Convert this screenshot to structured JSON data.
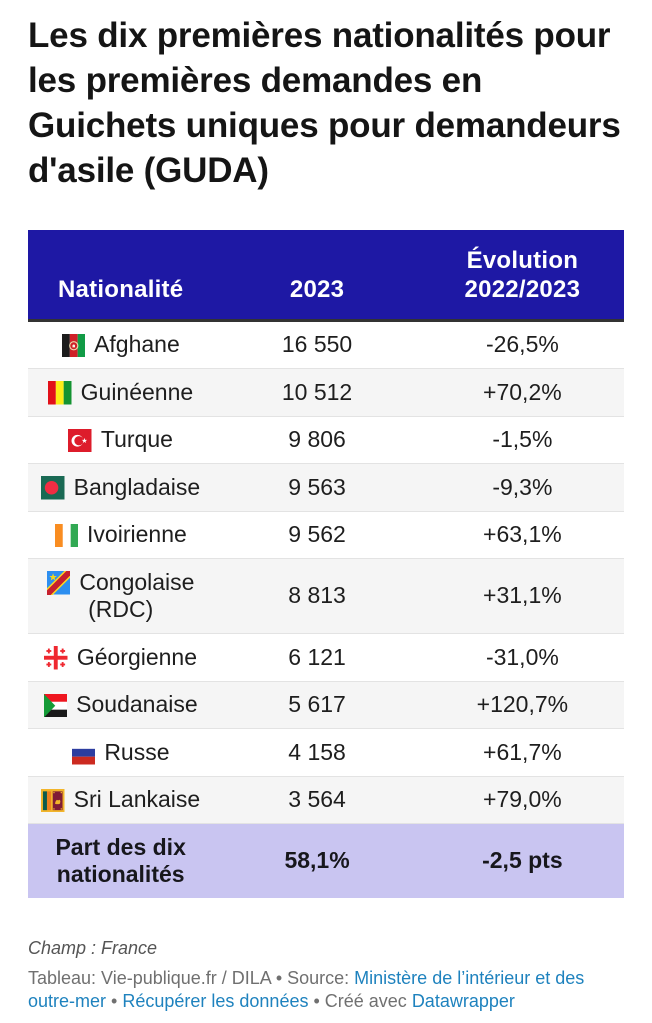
{
  "title": {
    "lines": [
      "Les dix premières nationalités pour",
      "les premières demandes en",
      "Guichets uniques pour demandeurs",
      "d'asile (GUDA)"
    ]
  },
  "table": {
    "columns": [
      {
        "label": "Nationalité"
      },
      {
        "label": "2023"
      },
      {
        "label": "Évolution\n2022/2023"
      }
    ],
    "rows": [
      {
        "flag": "afghanistan-flag-icon",
        "nationality": "Afghane",
        "value": "16 550",
        "evolution": "-26,5%"
      },
      {
        "flag": "guinea-flag-icon",
        "nationality": "Guinéenne",
        "value": "10 512",
        "evolution": "+70,2%"
      },
      {
        "flag": "turkey-flag-icon",
        "nationality": "Turque",
        "value": "9 806",
        "evolution": "-1,5%"
      },
      {
        "flag": "bangladesh-flag-icon",
        "nationality": "Bangladaise",
        "value": "9 563",
        "evolution": "-9,3%"
      },
      {
        "flag": "ivory-coast-flag-icon",
        "nationality": "Ivoirienne",
        "value": "9 562",
        "evolution": "+63,1%"
      },
      {
        "flag": "dr-congo-flag-icon",
        "nationality": "Congolaise (RDC)",
        "value": "8 813",
        "evolution": "+31,1%"
      },
      {
        "flag": "georgia-flag-icon",
        "nationality": "Géorgienne",
        "value": "6 121",
        "evolution": "-31,0%"
      },
      {
        "flag": "sudan-flag-icon",
        "nationality": "Soudanaise",
        "value": "5 617",
        "evolution": "+120,7%"
      },
      {
        "flag": "russia-flag-icon",
        "nationality": "Russe",
        "value": "4 158",
        "evolution": "+61,7%"
      },
      {
        "flag": "sri-lanka-flag-icon",
        "nationality": "Sri Lankaise",
        "value": "3 564",
        "evolution": "+79,0%"
      }
    ],
    "summary": {
      "label": "Part des dix nationalités",
      "value": "58,1%",
      "evolution": "-2,5 pts"
    }
  },
  "footer": {
    "note": "Champ : France",
    "attribution": {
      "prefix": "Tableau: Vie-publique.fr / DILA • Source: ",
      "source_link": "Ministère de l’intérieur et des outre-mer",
      "sep1": " • ",
      "data_link": "Récupérer les données",
      "sep2": " • Créé avec ",
      "creator_link": "Datawrapper"
    }
  },
  "chart_data": {
    "type": "table",
    "title": "Les dix premières nationalités pour les premières demandes en Guichets uniques pour demandeurs d'asile (GUDA)",
    "columns": [
      "Nationalité",
      "2023",
      "Évolution 2022/2023"
    ],
    "rows": [
      [
        "Afghane",
        "16 550",
        "-26,5%"
      ],
      [
        "Guinéenne",
        "10 512",
        "+70,2%"
      ],
      [
        "Turque",
        "9 806",
        "-1,5%"
      ],
      [
        "Bangladaise",
        "9 563",
        "-9,3%"
      ],
      [
        "Ivoirienne",
        "9 562",
        "+63,1%"
      ],
      [
        "Congolaise (RDC)",
        "8 813",
        "+31,1%"
      ],
      [
        "Géorgienne",
        "6 121",
        "-31,0%"
      ],
      [
        "Soudanaise",
        "5 617",
        "+120,7%"
      ],
      [
        "Russe",
        "4 158",
        "+61,7%"
      ],
      [
        "Sri Lankaise",
        "3 564",
        "+79,0%"
      ]
    ],
    "summary_row": [
      "Part des dix nationalités",
      "58,1%",
      "-2,5 pts"
    ],
    "note": "Champ : France",
    "byline": "Tableau: Vie-publique.fr / DILA",
    "source": "Ministère de l’intérieur et des outre-mer"
  },
  "colors": {
    "header_background": "#1e18a4",
    "header_text": "#ffffff",
    "summary_background": "#c9c5f1",
    "alt_row_background": "#f5f5f5",
    "link_blue": "#1e82be"
  }
}
